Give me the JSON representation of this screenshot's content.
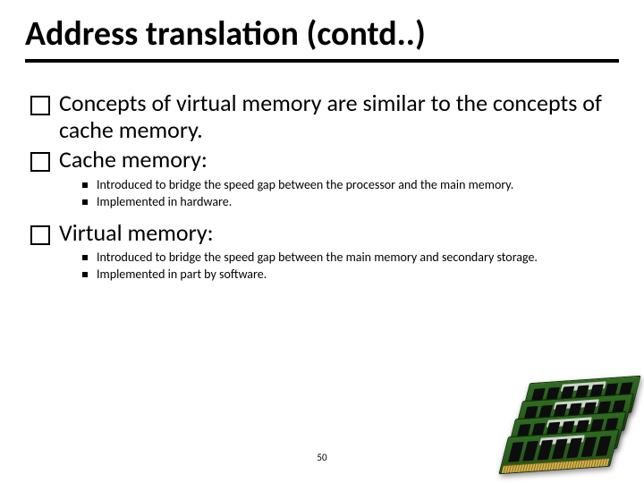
{
  "title": "Address translation (contd..)",
  "colors": {
    "text": "#000000",
    "background": "#ffffff",
    "rule": "#000000",
    "ram_pcb": "#2e6b1f",
    "ram_chip": "#0d0d0d",
    "ram_pin": "#d4b24a"
  },
  "typography": {
    "title_fontsize_pt": 32,
    "title_weight": "bold",
    "lvl1_fontsize_pt": 22,
    "lvl2_fontsize_pt": 12
  },
  "bullets": [
    {
      "text": "Concepts of virtual memory are similar to the concepts of cache memory.",
      "sub": []
    },
    {
      "text": "Cache memory:",
      "sub": [
        "Introduced to bridge the speed gap between the processor and the main memory.",
        "Implemented in hardware."
      ]
    },
    {
      "text": "Virtual memory:",
      "sub": [
        "Introduced to bridge the speed gap between the main memory and secondary storage.",
        "Implemented in part by software."
      ]
    }
  ],
  "page_number": "50",
  "image": {
    "semantic": "ram-modules",
    "count": 4,
    "chips_per_stick": 7
  }
}
